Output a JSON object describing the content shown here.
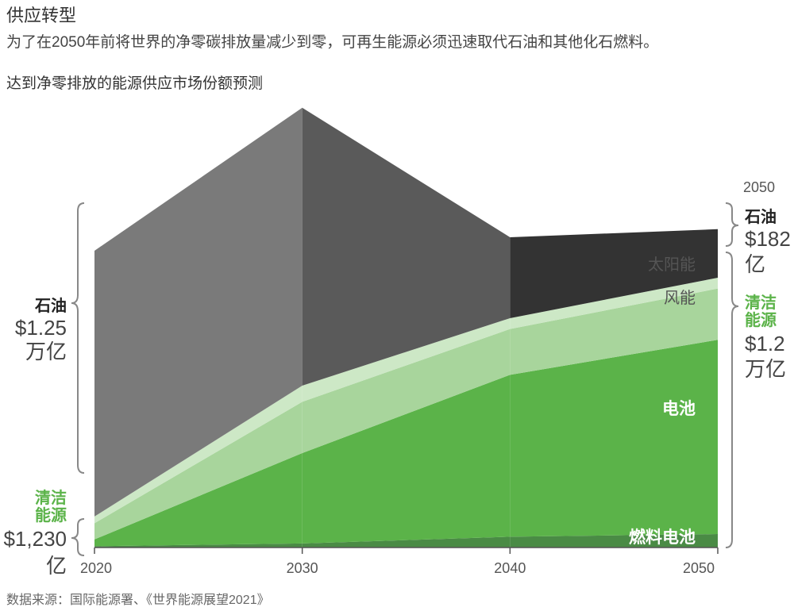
{
  "header": {
    "title": "供应转型",
    "subtitle": "为了在2050年前将世界的净零碳排放量减少到零，可再生能源必须迅速取代石油和其他化石燃料。"
  },
  "chart_title": "达到净零排放的能源供应市场份额预测",
  "source": "数据来源：国际能源署、《世界能源展望2021》",
  "left_labels": {
    "oil_name": "石油",
    "oil_value_1": "$1.25",
    "oil_value_2": "万亿",
    "clean_name_1": "清洁",
    "clean_name_2": "能源",
    "clean_value_1": "$1,230",
    "clean_value_2": "亿"
  },
  "right_labels": {
    "year": "2050",
    "oil_name": "石油",
    "oil_value_1": "$182",
    "oil_value_2": "亿",
    "clean_name_1": "清洁",
    "clean_name_2": "能源",
    "clean_value_1": "$1.2",
    "clean_value_2": "万亿"
  },
  "colors": {
    "oil": [
      "#7a7a7a",
      "#5a5a5a",
      "#333333"
    ],
    "fuel_cell": "#4a8b45",
    "battery": "#5bb349",
    "wind": "#a8d59c",
    "solar": "#cde8c6",
    "green_text": "#5bb349"
  },
  "chart_data": {
    "type": "area",
    "stacked": true,
    "x": [
      2020,
      2030,
      2040,
      2050
    ],
    "xlabel": "",
    "ylabel": "",
    "series": [
      {
        "name": "燃料电池",
        "values": [
          0.5,
          1.5,
          4,
          5
        ]
      },
      {
        "name": "电池",
        "values": [
          2.5,
          33.5,
          60,
          72
        ]
      },
      {
        "name": "风能",
        "values": [
          6,
          19,
          17,
          19
        ]
      },
      {
        "name": "太阳能",
        "values": [
          2.5,
          6,
          4,
          4
        ]
      },
      {
        "name": "石油",
        "values": [
          98.5,
          103,
          30,
          18
        ]
      }
    ]
  }
}
